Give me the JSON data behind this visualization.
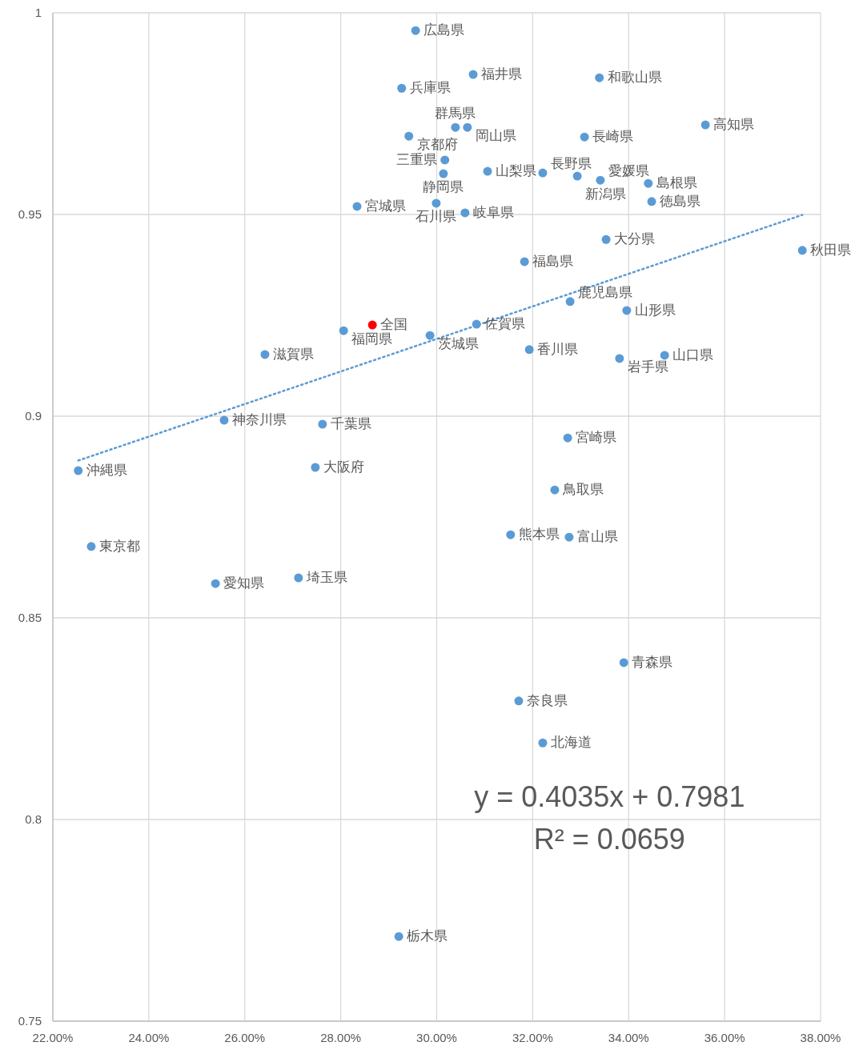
{
  "chart_data": {
    "type": "scatter",
    "xlim": [
      0.22,
      0.38
    ],
    "ylim": [
      0.75,
      1
    ],
    "xticks": [
      {
        "value": 0.22,
        "label": "22.00%"
      },
      {
        "value": 0.24,
        "label": "24.00%"
      },
      {
        "value": 0.26,
        "label": "26.00%"
      },
      {
        "value": 0.28,
        "label": "28.00%"
      },
      {
        "value": 0.3,
        "label": "30.00%"
      },
      {
        "value": 0.32,
        "label": "32.00%"
      },
      {
        "value": 0.34,
        "label": "34.00%"
      },
      {
        "value": 0.36,
        "label": "36.00%"
      },
      {
        "value": 0.38,
        "label": "38.00%"
      }
    ],
    "yticks": [
      0.75,
      0.8,
      0.85,
      0.9,
      0.95,
      1
    ],
    "grid": true,
    "marker": "circle",
    "annotations": [
      "y = 0.4035x + 0.7981",
      "R² = 0.0659"
    ],
    "series": [
      {
        "name": "広島県",
        "color": "#5b9bd5",
        "x": [
          0.2956
        ],
        "values": [
          0.9956
        ]
      },
      {
        "name": "福井県",
        "color": "#5b9bd5",
        "x": [
          0.3076
        ],
        "values": [
          0.9847
        ]
      },
      {
        "name": "和歌山県",
        "color": "#5b9bd5",
        "x": [
          0.3339
        ],
        "values": [
          0.9839
        ]
      },
      {
        "name": "兵庫県",
        "color": "#5b9bd5",
        "x": [
          0.2927
        ],
        "values": [
          0.9813
        ]
      },
      {
        "name": "群馬県",
        "color": "#5b9bd5",
        "x": [
          0.3039
        ],
        "values": [
          0.9716
        ]
      },
      {
        "name": "岡山県",
        "color": "#5b9bd5",
        "x": [
          0.3064
        ],
        "values": [
          0.9716
        ]
      },
      {
        "name": "京都府",
        "color": "#5b9bd5",
        "x": [
          0.2942
        ],
        "values": [
          0.9694
        ]
      },
      {
        "name": "長崎県",
        "color": "#5b9bd5",
        "x": [
          0.3308
        ],
        "values": [
          0.9692
        ]
      },
      {
        "name": "高知県",
        "color": "#5b9bd5",
        "x": [
          0.356
        ],
        "values": [
          0.9722
        ]
      },
      {
        "name": "三重県",
        "color": "#5b9bd5",
        "x": [
          0.3017
        ],
        "values": [
          0.9635
        ]
      },
      {
        "name": "静岡県",
        "color": "#5b9bd5",
        "x": [
          0.3014
        ],
        "values": [
          0.9601
        ]
      },
      {
        "name": "山梨県",
        "color": "#5b9bd5",
        "x": [
          0.3106
        ],
        "values": [
          0.9607
        ]
      },
      {
        "name": "長野県",
        "color": "#5b9bd5",
        "x": [
          0.3221
        ],
        "values": [
          0.9603
        ]
      },
      {
        "name": "新潟県",
        "color": "#5b9bd5",
        "x": [
          0.3293
        ],
        "values": [
          0.9595
        ]
      },
      {
        "name": "愛媛県",
        "color": "#5b9bd5",
        "x": [
          0.3341
        ],
        "values": [
          0.9585
        ]
      },
      {
        "name": "島根県",
        "color": "#5b9bd5",
        "x": [
          0.3441
        ],
        "values": [
          0.9577
        ]
      },
      {
        "name": "徳島県",
        "color": "#5b9bd5",
        "x": [
          0.3448
        ],
        "values": [
          0.9532
        ]
      },
      {
        "name": "宮城県",
        "color": "#5b9bd5",
        "x": [
          0.2834
        ],
        "values": [
          0.952
        ]
      },
      {
        "name": "石川県",
        "color": "#5b9bd5",
        "x": [
          0.2999
        ],
        "values": [
          0.9528
        ]
      },
      {
        "name": "岐阜県",
        "color": "#5b9bd5",
        "x": [
          0.3059
        ],
        "values": [
          0.9504
        ]
      },
      {
        "name": "大分県",
        "color": "#5b9bd5",
        "x": [
          0.3353
        ],
        "values": [
          0.9438
        ]
      },
      {
        "name": "秋田県",
        "color": "#5b9bd5",
        "x": [
          0.3762
        ],
        "values": [
          0.9411
        ]
      },
      {
        "name": "福島県",
        "color": "#5b9bd5",
        "x": [
          0.3183
        ],
        "values": [
          0.9383
        ]
      },
      {
        "name": "鹿児島県",
        "color": "#5b9bd5",
        "x": [
          0.3278
        ],
        "values": [
          0.9284
        ]
      },
      {
        "name": "山形県",
        "color": "#5b9bd5",
        "x": [
          0.3396
        ],
        "values": [
          0.9262
        ]
      },
      {
        "name": "全国",
        "color": "#ff0000",
        "x": [
          0.2866
        ],
        "values": [
          0.9226
        ]
      },
      {
        "name": "佐賀県",
        "color": "#5b9bd5",
        "x": [
          0.3083
        ],
        "values": [
          0.9228
        ]
      },
      {
        "name": "福岡県",
        "color": "#5b9bd5",
        "x": [
          0.2806
        ],
        "values": [
          0.9212
        ]
      },
      {
        "name": "茨城県",
        "color": "#5b9bd5",
        "x": [
          0.2986
        ],
        "values": [
          0.92
        ]
      },
      {
        "name": "香川県",
        "color": "#5b9bd5",
        "x": [
          0.3193
        ],
        "values": [
          0.9165
        ]
      },
      {
        "name": "滋賀県",
        "color": "#5b9bd5",
        "x": [
          0.2642
        ],
        "values": [
          0.9153
        ]
      },
      {
        "name": "山口県",
        "color": "#5b9bd5",
        "x": [
          0.3475
        ],
        "values": [
          0.9151
        ]
      },
      {
        "name": "岩手県",
        "color": "#5b9bd5",
        "x": [
          0.3381
        ],
        "values": [
          0.9143
        ]
      },
      {
        "name": "神奈川県",
        "color": "#5b9bd5",
        "x": [
          0.2557
        ],
        "values": [
          0.899
        ]
      },
      {
        "name": "千葉県",
        "color": "#5b9bd5",
        "x": [
          0.2762
        ],
        "values": [
          0.898
        ]
      },
      {
        "name": "宮崎県",
        "color": "#5b9bd5",
        "x": [
          0.3273
        ],
        "values": [
          0.8946
        ]
      },
      {
        "name": "沖縄県",
        "color": "#5b9bd5",
        "x": [
          0.2253
        ],
        "values": [
          0.8865
        ]
      },
      {
        "name": "大阪府",
        "color": "#5b9bd5",
        "x": [
          0.2747
        ],
        "values": [
          0.8873
        ]
      },
      {
        "name": "鳥取県",
        "color": "#5b9bd5",
        "x": [
          0.3246
        ],
        "values": [
          0.8817
        ]
      },
      {
        "name": "熊本県",
        "color": "#5b9bd5",
        "x": [
          0.3154
        ],
        "values": [
          0.8706
        ]
      },
      {
        "name": "富山県",
        "color": "#5b9bd5",
        "x": [
          0.3276
        ],
        "values": [
          0.87
        ]
      },
      {
        "name": "東京都",
        "color": "#5b9bd5",
        "x": [
          0.228
        ],
        "values": [
          0.8677
        ]
      },
      {
        "name": "埼玉県",
        "color": "#5b9bd5",
        "x": [
          0.2712
        ],
        "values": [
          0.8599
        ]
      },
      {
        "name": "愛知県",
        "color": "#5b9bd5",
        "x": [
          0.2539
        ],
        "values": [
          0.8585
        ]
      },
      {
        "name": "青森県",
        "color": "#5b9bd5",
        "x": [
          0.339
        ],
        "values": [
          0.8389
        ]
      },
      {
        "name": "奈良県",
        "color": "#5b9bd5",
        "x": [
          0.3171
        ],
        "values": [
          0.8294
        ]
      },
      {
        "name": "北海道",
        "color": "#5b9bd5",
        "x": [
          0.3221
        ],
        "values": [
          0.819
        ]
      },
      {
        "name": "栃木県",
        "color": "#5b9bd5",
        "x": [
          0.2921
        ],
        "values": [
          0.771
        ]
      },
      {
        "type": "line",
        "color": "#5b9bd5",
        "line_style": "dotted",
        "marker": "none",
        "x": [
          0.2253,
          0.3762
        ],
        "values": [
          0.889,
          0.9499
        ]
      }
    ]
  }
}
